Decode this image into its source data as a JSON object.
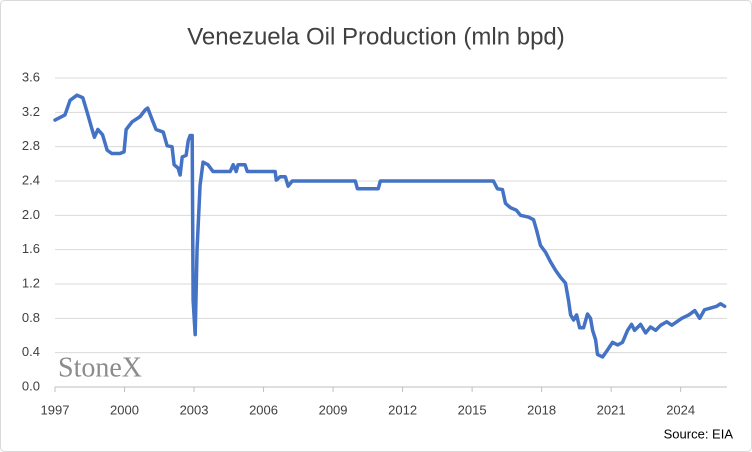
{
  "chart_data": {
    "type": "line",
    "title": "Venezuela Oil Production (mln bpd)",
    "watermark": "StoneX",
    "source": "Source: EIA",
    "color": "#4472c4",
    "grid": true,
    "xlim": [
      1997,
      2026
    ],
    "xticks": [
      1997,
      2000,
      2003,
      2006,
      2009,
      2012,
      2015,
      2018,
      2021,
      2024
    ],
    "ylim": [
      0,
      3.6
    ],
    "yticks": [
      {
        "value": 0,
        "label": "0.0"
      },
      0.4,
      0.8,
      1.2,
      1.6,
      {
        "value": 2,
        "label": "2.0"
      },
      2.4,
      2.8,
      3.2,
      3.6
    ],
    "x": [
      1997.0,
      1997.43,
      1997.65,
      1997.95,
      1998.2,
      1998.4,
      1998.6,
      1998.7,
      1998.85,
      1999.05,
      1999.25,
      1999.45,
      1999.8,
      1999.98,
      2000.07,
      2000.33,
      2000.67,
      2000.9,
      2001.0,
      2001.2,
      2001.36,
      2001.67,
      2001.84,
      2002.05,
      2002.14,
      2002.31,
      2002.4,
      2002.49,
      2002.66,
      2002.75,
      2002.83,
      2002.92,
      2002.96,
      2003.05,
      2003.13,
      2003.26,
      2003.39,
      2003.6,
      2003.82,
      2004.56,
      2004.69,
      2004.82,
      2004.9,
      2005.2,
      2005.3,
      2006.29,
      2006.5,
      2006.55,
      2006.72,
      2006.94,
      2007.06,
      2007.24,
      2009.96,
      2010.05,
      2010.95,
      2011.04,
      2015.92,
      2016.09,
      2016.31,
      2016.44,
      2016.65,
      2016.91,
      2017.09,
      2017.43,
      2017.65,
      2017.78,
      2017.95,
      2018.17,
      2018.38,
      2018.6,
      2018.81,
      2019.03,
      2019.16,
      2019.25,
      2019.38,
      2019.51,
      2019.64,
      2019.81,
      2019.98,
      2020.11,
      2020.2,
      2020.33,
      2020.41,
      2020.63,
      2020.84,
      2021.06,
      2021.28,
      2021.49,
      2021.71,
      2021.88,
      2022.01,
      2022.27,
      2022.49,
      2022.7,
      2022.92,
      2023.14,
      2023.4,
      2023.62,
      2023.83,
      2024.05,
      2024.35,
      2024.61,
      2024.82,
      2025.03,
      2025.29,
      2025.55,
      2025.72,
      2025.9
    ],
    "values": [
      3.11,
      3.17,
      3.34,
      3.4,
      3.37,
      3.19,
      3.0,
      2.91,
      3.0,
      2.94,
      2.76,
      2.72,
      2.72,
      2.74,
      3.0,
      3.09,
      3.15,
      3.23,
      3.25,
      3.11,
      3.0,
      2.97,
      2.81,
      2.8,
      2.59,
      2.55,
      2.47,
      2.68,
      2.7,
      2.87,
      2.93,
      2.93,
      1.01,
      0.61,
      1.6,
      2.35,
      2.62,
      2.59,
      2.51,
      2.51,
      2.59,
      2.51,
      2.59,
      2.59,
      2.51,
      2.51,
      2.51,
      2.41,
      2.45,
      2.45,
      2.34,
      2.4,
      2.4,
      2.31,
      2.31,
      2.4,
      2.4,
      2.31,
      2.3,
      2.14,
      2.09,
      2.06,
      2.0,
      1.98,
      1.95,
      1.83,
      1.65,
      1.57,
      1.46,
      1.36,
      1.28,
      1.21,
      1.01,
      0.84,
      0.78,
      0.84,
      0.69,
      0.69,
      0.85,
      0.8,
      0.66,
      0.55,
      0.38,
      0.35,
      0.43,
      0.52,
      0.49,
      0.52,
      0.66,
      0.73,
      0.66,
      0.73,
      0.63,
      0.7,
      0.66,
      0.72,
      0.76,
      0.72,
      0.76,
      0.8,
      0.84,
      0.89,
      0.8,
      0.9,
      0.92,
      0.94,
      0.97,
      0.94
    ]
  }
}
